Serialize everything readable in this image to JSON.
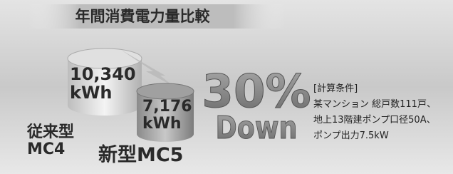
{
  "header": {
    "title": "年間消費電力量比較"
  },
  "items": [
    {
      "name_lines": [
        "従来型",
        "MC4"
      ],
      "value": "10,340",
      "unit": "kWh"
    },
    {
      "name_lines": [
        "新型MC5"
      ],
      "value": "7,176",
      "unit": "kWh"
    }
  ],
  "reduction": {
    "percent": "30%",
    "word": "Down"
  },
  "conditions": {
    "heading": "[計算条件]",
    "lines": [
      "某マンション 総戸数111戸、",
      "地上13階建ポンプ口径50A、",
      "ポンプ出力7.5kW"
    ]
  }
}
